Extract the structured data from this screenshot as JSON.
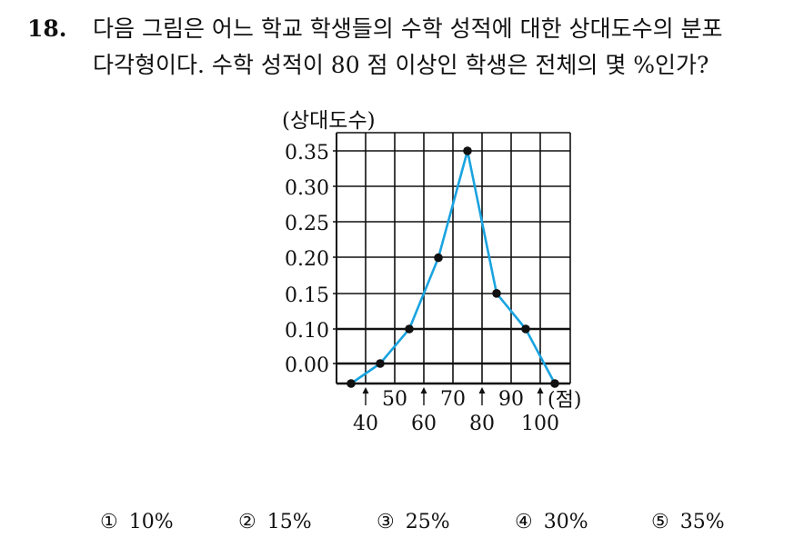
{
  "question": {
    "number": "18.",
    "line1": "다음 그림은 어느 학교 학생들의 수학 성적에 대한 상대도수의 분포",
    "line2": "다각형이다. 수학 성적이 80 점 이상인 학생은 전체의 몇 %인가?"
  },
  "chart_data": {
    "type": "line",
    "ylabel": "(상대도수)",
    "xlabel": "(점)",
    "x": [
      35,
      45,
      55,
      65,
      75,
      85,
      95,
      105
    ],
    "y": [
      0,
      0,
      0.1,
      0.2,
      0.35,
      0.15,
      0.1,
      0
    ],
    "y_tick_labels": [
      "0.00",
      "0.10",
      "0.15",
      "0.20",
      "0.25",
      "0.30",
      "0.35"
    ],
    "x_tick_labels_upper": [
      "50",
      "70",
      "90"
    ],
    "x_tick_labels_lower": [
      "40",
      "60",
      "80",
      "100"
    ],
    "grid": true,
    "line_color": "#1aa3e0"
  },
  "choices": [
    {
      "marker": "①",
      "text": "10%"
    },
    {
      "marker": "②",
      "text": "15%"
    },
    {
      "marker": "③",
      "text": "25%"
    },
    {
      "marker": "④",
      "text": "30%"
    },
    {
      "marker": "⑤",
      "text": "35%"
    }
  ]
}
